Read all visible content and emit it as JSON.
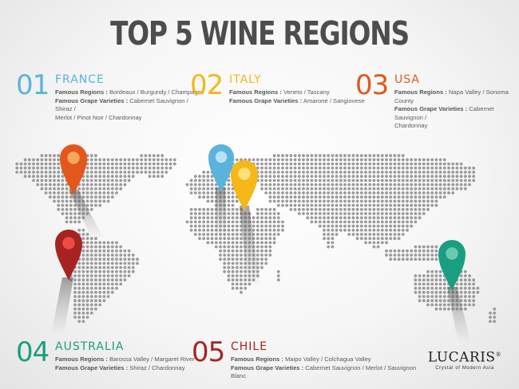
{
  "title": "TOP 5 WINE REGIONS",
  "regions": [
    {
      "number": "01",
      "name": "FRANCE",
      "color": "#5bb3dc",
      "regions_label": "Famous Regions :",
      "regions_value": "Bordeaux / Burgundy / Champagne",
      "grapes_label": "Famous Grape Varieties :",
      "grapes_value_1": "Cabernet Sauvignon / Shiraz /",
      "grapes_value_2": "Merlot / Pinot Noir / Chardonnay"
    },
    {
      "number": "02",
      "name": "ITALY",
      "color": "#f6b719",
      "regions_label": "Famous Regions :",
      "regions_value": "Veneto / Tascany",
      "grapes_label": "Famous Grape Varieties :",
      "grapes_value_1": "Amarone / Sangiovese"
    },
    {
      "number": "03",
      "name": "USA",
      "color": "#e2571c",
      "regions_label": "Famous Regions :",
      "regions_value": "Napa Valley / Sonoma County",
      "grapes_label": "Famous Grape Varieties :",
      "grapes_value_1": "Cabernet Sauvignon /",
      "grapes_value_2": "Chardonnay"
    },
    {
      "number": "04",
      "name": "AUSTRALIA",
      "color": "#1a9e82",
      "regions_label": "Famous Regions :",
      "regions_value": "Barossa Valley / Margaret River",
      "grapes_label": "Famous Grape Varieties :",
      "grapes_value_1": "Shiraz / Chardonnay"
    },
    {
      "number": "05",
      "name": "CHILE",
      "color": "#a52422",
      "regions_label": "Famous Regions :",
      "regions_value": "Maipo Valley / Colchagua Valley",
      "grapes_label": "Famous Grape Varieties :",
      "grapes_value_1": "Cabernet Sauvignon / Merlot / Sauvignon Blanc"
    }
  ],
  "logo": {
    "name": "LUCARIS",
    "registered": "®",
    "tagline": "Crystal of Modern Asia"
  },
  "map_pins": [
    {
      "name": "usa-pin",
      "color": "#e2571c",
      "inner": "#f6a85a"
    },
    {
      "name": "chile-pin",
      "color": "#a52422",
      "inner": "#f04a45"
    },
    {
      "name": "france-pin",
      "color": "#5bb3dc",
      "inner": "#b7e3f7"
    },
    {
      "name": "italy-pin",
      "color": "#f6b719",
      "inner": "#fde07a"
    },
    {
      "name": "australia-pin",
      "color": "#1a9e82",
      "inner": "#6cc9b1"
    }
  ]
}
